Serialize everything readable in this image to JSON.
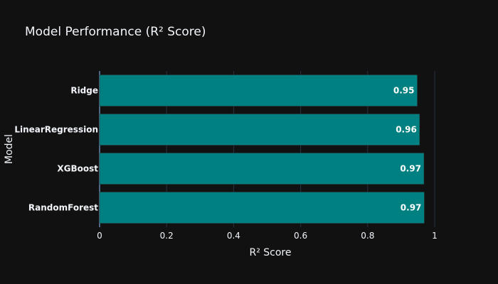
{
  "chart_data": {
    "type": "bar",
    "orientation": "horizontal",
    "title": "Model Performance (R² Score)",
    "xlabel": "R² Score",
    "ylabel": "Model",
    "categories": [
      "Ridge",
      "LinearRegression",
      "XGBoost",
      "RandomForest"
    ],
    "values": [
      0.948,
      0.955,
      0.968,
      0.969
    ],
    "data_labels": [
      "0.95",
      "0.96",
      "0.97",
      "0.97"
    ],
    "xlim": [
      0,
      1
    ],
    "xticks": [
      0,
      0.2,
      0.4,
      0.6,
      0.8,
      1
    ],
    "xtick_labels": [
      "0",
      "0.2",
      "0.4",
      "0.6",
      "0.8",
      "1"
    ],
    "grid": true,
    "legend": "none"
  },
  "colors": {
    "background": "#111111",
    "plot_background": "#111111",
    "bar_fill": "#008080",
    "bar_stroke": "#2a3a3a",
    "grid": "#283442",
    "text": "#f2f5fa"
  }
}
